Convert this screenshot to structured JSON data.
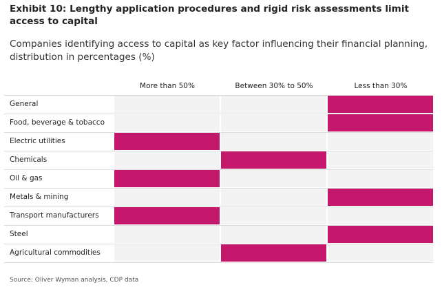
{
  "title": "Exhibit 10: Lengthy application procedures and rigid risk assessments limit access to capital",
  "subtitle": "Companies identifying access to capital as key factor influencing their financial planning, distribution in percentages (%)",
  "source": "Source: Oliver Wyman analysis, CDP data",
  "colors": {
    "highlight": "#c4186c",
    "empty": "#f3f3f3"
  },
  "chart_data": {
    "type": "table",
    "columns": [
      "More than 50%",
      "Between 30% to 50%",
      "Less than 30%"
    ],
    "rows": [
      {
        "label": "General",
        "selected": "Less than 30%"
      },
      {
        "label": "Food, beverage & tobacco",
        "selected": "Less than 30%"
      },
      {
        "label": "Electric utilities",
        "selected": "More than 50%"
      },
      {
        "label": "Chemicals",
        "selected": "Between 30% to 50%"
      },
      {
        "label": "Oil & gas",
        "selected": "More than 50%"
      },
      {
        "label": "Metals & mining",
        "selected": "Less than 30%"
      },
      {
        "label": "Transport manufacturers",
        "selected": "More than 50%"
      },
      {
        "label": "Steel",
        "selected": "Less than 30%"
      },
      {
        "label": "Agricultural commodities",
        "selected": "Between 30% to 50%"
      }
    ]
  }
}
